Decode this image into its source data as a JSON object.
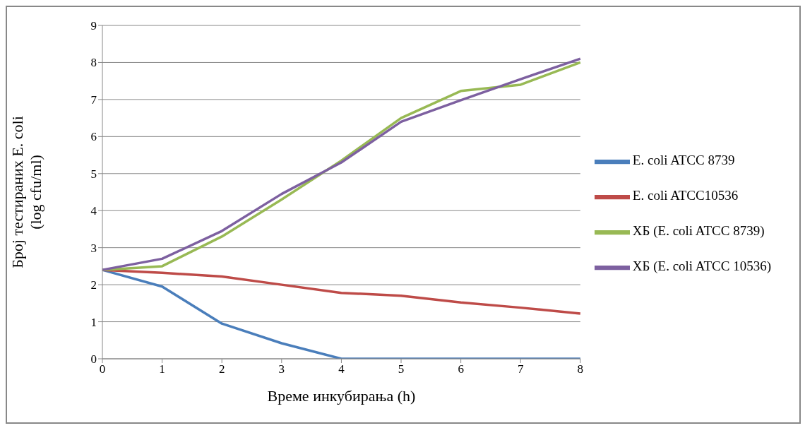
{
  "chart_data": {
    "type": "line",
    "xlabel": "Време инкубирања (h)",
    "ylabel": "Број тестираних E. coli\n(log cfu/ml)",
    "categories": [
      "0",
      "1",
      "2",
      "3",
      "4",
      "5",
      "6",
      "7",
      "8"
    ],
    "series": [
      {
        "name": "E. coli ATCC 8739",
        "color": "#4a7ebb",
        "values": [
          2.4,
          1.95,
          0.95,
          0.42,
          0,
          0,
          0,
          0,
          0
        ]
      },
      {
        "name": "E. coli ATCC10536",
        "color": "#be4b48",
        "values": [
          2.4,
          2.32,
          2.22,
          2.0,
          1.78,
          1.7,
          1.52,
          1.38,
          1.22
        ]
      },
      {
        "name": "ХБ (E. coli ATCC 8739)",
        "color": "#98b954",
        "values": [
          2.4,
          2.5,
          3.3,
          4.3,
          5.35,
          6.5,
          7.23,
          7.4,
          8.0
        ]
      },
      {
        "name": "ХБ (E. coli ATCC 10536)",
        "color": "#7d60a0",
        "values": [
          2.4,
          2.7,
          3.45,
          4.45,
          5.3,
          6.4,
          6.98,
          7.55,
          8.1
        ]
      }
    ],
    "ylim": [
      0,
      9
    ],
    "yticks": [
      0,
      1,
      2,
      3,
      4,
      5,
      6,
      7,
      8,
      9
    ],
    "grid": "y",
    "legend": "right",
    "marker": "none",
    "line_style": "solid"
  }
}
